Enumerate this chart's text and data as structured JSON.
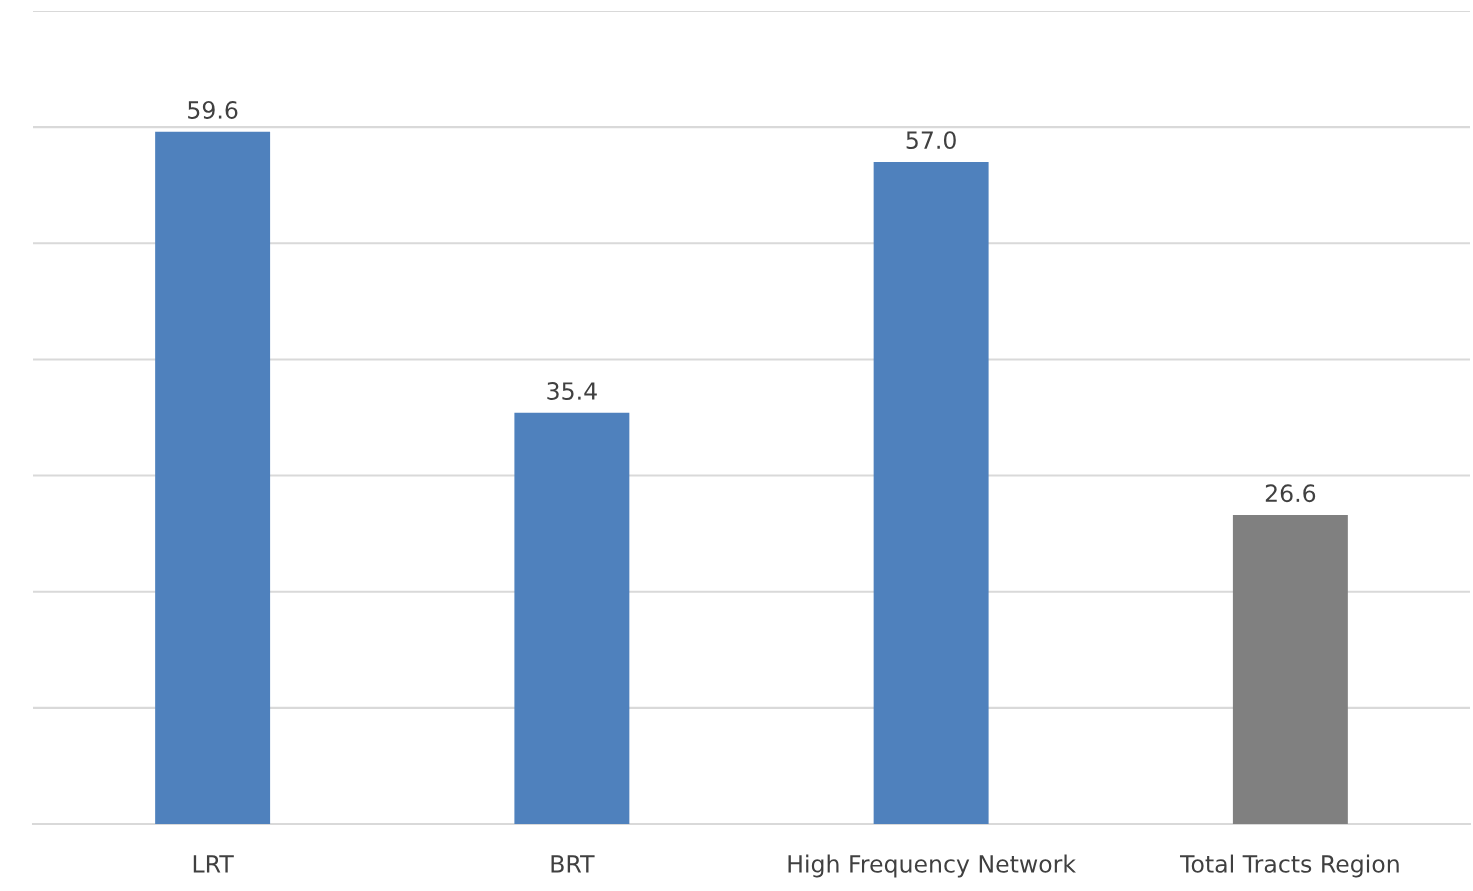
{
  "chart_data": {
    "type": "bar",
    "categories": [
      "LRT",
      "BRT",
      "High Frequency Network",
      "Total Tracts Region"
    ],
    "values": [
      59.6,
      35.4,
      57.0,
      26.6
    ],
    "colors": [
      "#4f81bd",
      "#4f81bd",
      "#4f81bd",
      "#808080"
    ],
    "value_labels": [
      "59.6",
      "35.4",
      "57.0",
      "26.6"
    ],
    "ylim": [
      0,
      70
    ],
    "yticks": [
      {
        "value": 0,
        "label": null
      },
      {
        "value": 10,
        "label": null
      },
      {
        "value": 20,
        "label": null
      },
      {
        "value": 30,
        "label": null
      },
      {
        "value": 40,
        "label": null
      },
      {
        "value": 50,
        "label": null
      },
      {
        "value": 60,
        "label": null
      },
      {
        "value": 70,
        "label": null
      }
    ],
    "tick_labels": "x",
    "grid": "y"
  }
}
